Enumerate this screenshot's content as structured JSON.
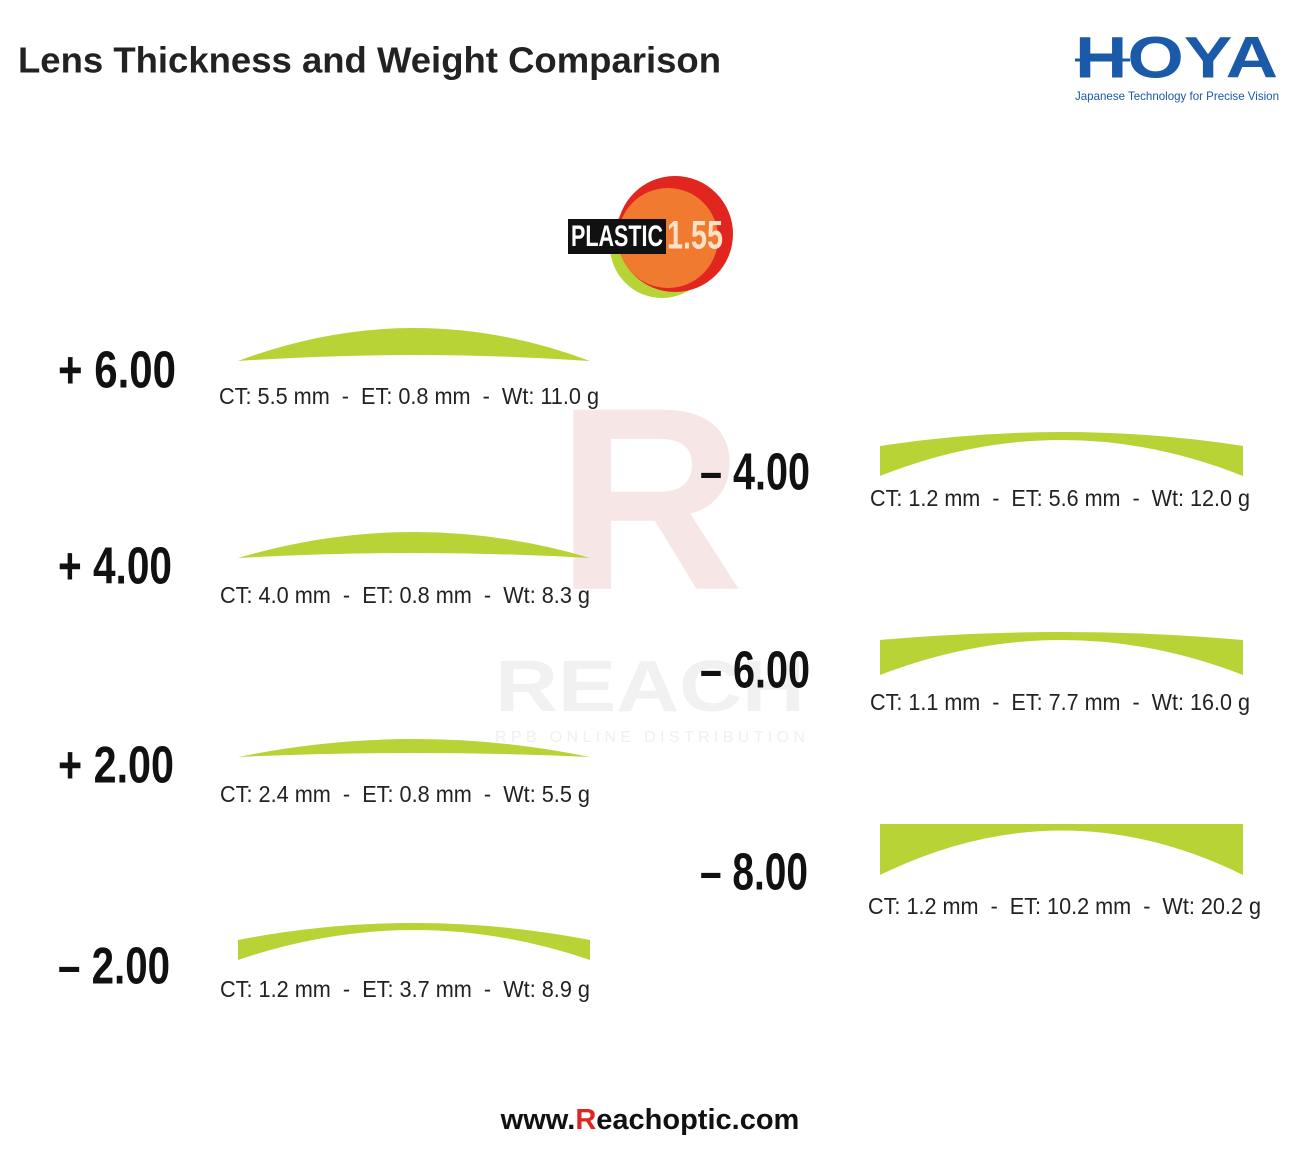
{
  "header": {
    "title": "Lens Thickness and Weight Comparison",
    "brand": "HOYA",
    "tagline": "Japanese Technology for Precise Vision"
  },
  "material": {
    "name": "PLASTIC",
    "index": "1.55"
  },
  "watermark": {
    "mark": "R",
    "name": "REACH",
    "subtitle": "RPB ONLINE DISTRIBUTION"
  },
  "lenses": [
    {
      "power": "+ 6.00",
      "specs": "CT: 5.5 mm  -  ET: 0.8 mm  -  Wt: 11.0 g"
    },
    {
      "power": "+ 4.00",
      "specs": "CT: 4.0 mm  -  ET: 0.8 mm  -  Wt: 8.3 g"
    },
    {
      "power": "+ 2.00",
      "specs": "CT: 2.4 mm  -  ET: 0.8 mm  -  Wt: 5.5 g"
    },
    {
      "power": "– 2.00",
      "specs": "CT: 1.2 mm  -  ET: 3.7 mm  -  Wt: 8.9 g"
    },
    {
      "power": "– 4.00",
      "specs": "CT: 1.2 mm  -  ET: 5.6 mm  -  Wt: 12.0 g"
    },
    {
      "power": "– 6.00",
      "specs": "CT: 1.1 mm  -  ET: 7.7 mm  -  Wt: 16.0 g"
    },
    {
      "power": "– 8.00",
      "specs": "CT: 1.2 mm  -  ET: 10.2 mm  -  Wt: 20.2 g"
    }
  ],
  "footer": {
    "prefix": "www.",
    "highlight": "R",
    "suffix": "eachoptic.com"
  }
}
